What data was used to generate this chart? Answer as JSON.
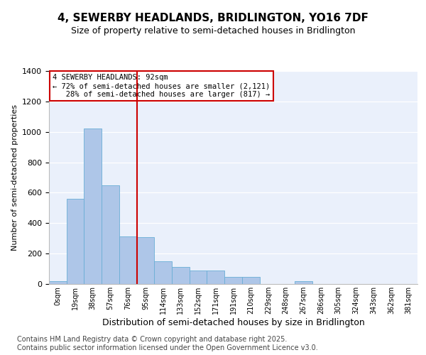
{
  "title_line1": "4, SEWERBY HEADLANDS, BRIDLINGTON, YO16 7DF",
  "title_line2": "Size of property relative to semi-detached houses in Bridlington",
  "xlabel": "Distribution of semi-detached houses by size in Bridlington",
  "ylabel": "Number of semi-detached properties",
  "bin_labels": [
    "0sqm",
    "19sqm",
    "38sqm",
    "57sqm",
    "76sqm",
    "95sqm",
    "114sqm",
    "133sqm",
    "152sqm",
    "171sqm",
    "191sqm",
    "210sqm",
    "229sqm",
    "248sqm",
    "267sqm",
    "286sqm",
    "305sqm",
    "324sqm",
    "343sqm",
    "362sqm",
    "381sqm"
  ],
  "bar_values": [
    20,
    560,
    1020,
    650,
    315,
    310,
    150,
    110,
    90,
    90,
    45,
    45,
    0,
    0,
    20,
    0,
    0,
    0,
    0,
    0,
    0
  ],
  "bar_color": "#aec6e8",
  "bar_edge_color": "#6aaed6",
  "property_label": "4 SEWERBY HEADLANDS: 92sqm",
  "pct_smaller": 72,
  "count_smaller": 2121,
  "pct_larger": 28,
  "count_larger": 817,
  "vline_color": "#cc0000",
  "annotation_box_color": "#cc0000",
  "vline_x": 4.5,
  "ylim": [
    0,
    1400
  ],
  "yticks": [
    0,
    200,
    400,
    600,
    800,
    1000,
    1200,
    1400
  ],
  "bg_color": "#eaf0fb",
  "footnote": "Contains HM Land Registry data © Crown copyright and database right 2025.\nContains public sector information licensed under the Open Government Licence v3.0.",
  "footnote_fontsize": 7
}
